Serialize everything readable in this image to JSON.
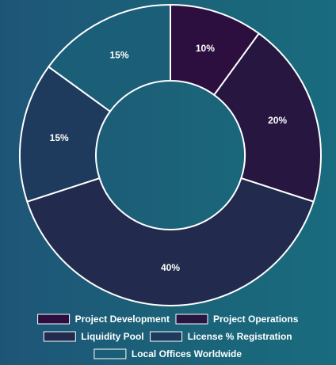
{
  "chart_data": {
    "type": "pie",
    "variant": "donut",
    "title": "",
    "unit": "%",
    "categories": [
      "Project Development",
      "Project Operations",
      "Liquidity Pool",
      "License % Registration",
      "Local Offices Worldwide"
    ],
    "values": [
      10,
      20,
      40,
      15,
      15
    ],
    "labels": [
      "10%",
      "20%",
      "40%",
      "15%",
      "15%"
    ],
    "colors": [
      "#2c0f3f",
      "#271640",
      "#222a4d",
      "#1e3a5d",
      "#1a5e77"
    ],
    "legend_position": "bottom",
    "start_angle_deg": 0,
    "direction": "clockwise"
  }
}
